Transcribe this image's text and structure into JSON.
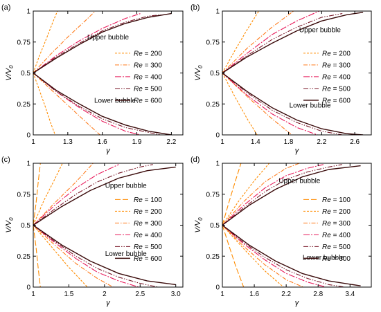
{
  "chart_data": [
    {
      "type": "line",
      "panel_label": "(a)",
      "xlabel": "γ",
      "ylabel": "V/V0",
      "xlim": [
        1,
        2.3
      ],
      "ylim": [
        0,
        1
      ],
      "xticks": [
        1,
        1.3,
        1.6,
        1.9,
        2.2
      ],
      "xtick_labels": [
        "1",
        "1.3",
        "1.6",
        "1.9",
        "2.2"
      ],
      "yticks": [
        0,
        0.25,
        0.5,
        0.75,
        1
      ],
      "ytick_labels": [
        "0",
        "0.25",
        "0.5",
        "0.75",
        "1"
      ],
      "annotations": [
        {
          "text": "Upper bubble",
          "x": 1.65,
          "y": 0.79
        },
        {
          "text": "Lower bubble",
          "x": 1.71,
          "y": 0.28
        }
      ],
      "legend_position": "right-middle",
      "series": [
        {
          "name": "200",
          "style": "short-dash",
          "color": "#ff8c00",
          "upper": {
            "x": [
              1,
              1.05,
              1.12,
              1.17,
              1.21
            ],
            "y": [
              0.5,
              0.63,
              0.79,
              0.91,
              1.0
            ]
          },
          "lower": {
            "x": [
              1,
              1.05,
              1.1,
              1.15,
              1.19
            ],
            "y": [
              0.5,
              0.37,
              0.24,
              0.1,
              0.0
            ]
          }
        },
        {
          "name": "300",
          "style": "dash-dot",
          "color": "#ff7a1a",
          "upper": {
            "x": [
              1,
              1.15,
              1.3,
              1.45,
              1.54
            ],
            "y": [
              0.5,
              0.65,
              0.79,
              0.92,
              1.0
            ]
          },
          "lower": {
            "x": [
              1,
              1.15,
              1.3,
              1.45,
              1.58
            ],
            "y": [
              0.5,
              0.37,
              0.24,
              0.11,
              0.0
            ]
          }
        },
        {
          "name": "400",
          "style": "long-dash-dot",
          "color": "#e8195a",
          "upper": {
            "x": [
              1,
              1.2,
              1.4,
              1.6,
              1.8,
              1.93
            ],
            "y": [
              0.5,
              0.64,
              0.76,
              0.86,
              0.94,
              0.98
            ]
          },
          "lower": {
            "x": [
              1,
              1.2,
              1.4,
              1.6,
              1.8,
              1.93
            ],
            "y": [
              0.5,
              0.35,
              0.22,
              0.11,
              0.03,
              0.0
            ]
          }
        },
        {
          "name": "500",
          "style": "dash-dot-dot",
          "color": "#7a1a2a",
          "upper": {
            "x": [
              1,
              1.2,
              1.4,
              1.6,
              1.8,
              2.0,
              2.11
            ],
            "y": [
              0.5,
              0.63,
              0.74,
              0.84,
              0.91,
              0.96,
              0.97
            ]
          },
          "lower": {
            "x": [
              1,
              1.2,
              1.4,
              1.6,
              1.8,
              2.0,
              2.11
            ],
            "y": [
              0.5,
              0.35,
              0.23,
              0.13,
              0.06,
              0.02,
              0.0
            ]
          }
        },
        {
          "name": "600",
          "style": "solid",
          "color": "#3a0a0a",
          "upper": {
            "x": [
              1,
              1.2,
              1.4,
              1.6,
              1.8,
              2.0,
              2.2
            ],
            "y": [
              0.5,
              0.62,
              0.73,
              0.83,
              0.9,
              0.95,
              0.98
            ]
          },
          "lower": {
            "x": [
              1,
              1.2,
              1.4,
              1.6,
              1.8,
              2.0,
              2.2
            ],
            "y": [
              0.5,
              0.36,
              0.25,
              0.15,
              0.08,
              0.03,
              0.0
            ]
          }
        }
      ]
    },
    {
      "type": "line",
      "panel_label": "(b)",
      "xlabel": "γ",
      "ylabel": "V/V0",
      "xlim": [
        1,
        2.8
      ],
      "ylim": [
        0,
        1
      ],
      "xticks": [
        1,
        1.4,
        1.8,
        2.2,
        2.6
      ],
      "xtick_labels": [
        "1",
        "1.4",
        "1.8",
        "2.2",
        "2.6"
      ],
      "yticks": [
        0,
        0.25,
        0.5,
        0.75,
        1
      ],
      "ytick_labels": [
        "0",
        "0.25",
        "0.5",
        "0.75",
        "1"
      ],
      "annotations": [
        {
          "text": "Upper bubble",
          "x": 2.18,
          "y": 0.85
        },
        {
          "text": "Lower bubble",
          "x": 2.06,
          "y": 0.24
        }
      ],
      "legend_position": "right-middle",
      "series": [
        {
          "name": "200",
          "style": "short-dash",
          "color": "#ff8c00",
          "upper": {
            "x": [
              1,
              1.15,
              1.3,
              1.44
            ],
            "y": [
              0.5,
              0.68,
              0.85,
              1.0
            ]
          },
          "lower": {
            "x": [
              1,
              1.15,
              1.3,
              1.42
            ],
            "y": [
              0.5,
              0.31,
              0.13,
              0.0
            ]
          }
        },
        {
          "name": "300",
          "style": "dash-dot",
          "color": "#ff7a1a",
          "upper": {
            "x": [
              1,
              1.3,
              1.6,
              1.86
            ],
            "y": [
              0.5,
              0.7,
              0.87,
              1.0
            ]
          },
          "lower": {
            "x": [
              1,
              1.3,
              1.6,
              1.84
            ],
            "y": [
              0.5,
              0.31,
              0.13,
              0.0
            ]
          }
        },
        {
          "name": "400",
          "style": "long-dash-dot",
          "color": "#e8195a",
          "upper": {
            "x": [
              1,
              1.3,
              1.6,
              1.9,
              2.17
            ],
            "y": [
              0.5,
              0.66,
              0.81,
              0.92,
              1.0
            ]
          },
          "lower": {
            "x": [
              1,
              1.3,
              1.6,
              1.9,
              2.15
            ],
            "y": [
              0.5,
              0.32,
              0.17,
              0.06,
              0.0
            ]
          }
        },
        {
          "name": "500",
          "style": "dash-dot-dot",
          "color": "#7a1a2a",
          "upper": {
            "x": [
              1,
              1.3,
              1.6,
              1.9,
              2.2,
              2.45
            ],
            "y": [
              0.5,
              0.64,
              0.77,
              0.87,
              0.95,
              0.98
            ]
          },
          "lower": {
            "x": [
              1,
              1.3,
              1.6,
              1.9,
              2.2,
              2.45
            ],
            "y": [
              0.5,
              0.34,
              0.2,
              0.1,
              0.03,
              0.0
            ]
          }
        },
        {
          "name": "600",
          "style": "solid",
          "color": "#3a0a0a",
          "upper": {
            "x": [
              1,
              1.3,
              1.6,
              1.9,
              2.2,
              2.5,
              2.7
            ],
            "y": [
              0.5,
              0.63,
              0.74,
              0.84,
              0.92,
              0.97,
              0.99
            ]
          },
          "lower": {
            "x": [
              1,
              1.3,
              1.6,
              1.9,
              2.2,
              2.5,
              2.7
            ],
            "y": [
              0.5,
              0.35,
              0.22,
              0.12,
              0.05,
              0.01,
              0.0
            ]
          }
        }
      ]
    },
    {
      "type": "line",
      "panel_label": "(c)",
      "xlabel": "γ",
      "ylabel": "V/V0",
      "xlim": [
        1,
        3.1
      ],
      "ylim": [
        0,
        1
      ],
      "xticks": [
        1,
        1.5,
        2,
        2.5,
        3
      ],
      "xtick_labels": [
        "1",
        "1.5",
        "2",
        "2.5",
        "3.0"
      ],
      "yticks": [
        0,
        0.25,
        0.5,
        0.75,
        1
      ],
      "ytick_labels": [
        "0",
        "0.25",
        "0.5",
        "0.75",
        "1"
      ],
      "annotations": [
        {
          "text": "Upper bubble",
          "x": 2.3,
          "y": 0.82
        },
        {
          "text": "Lower bubble",
          "x": 2.3,
          "y": 0.27
        }
      ],
      "legend_position": "right-middle",
      "series": [
        {
          "name": "100",
          "style": "long-dash",
          "color": "#ff8c00",
          "upper": {
            "x": [
              1,
              1.04,
              1.07,
              1.1
            ],
            "y": [
              0.5,
              0.68,
              0.85,
              1.0
            ]
          },
          "lower": {
            "x": [
              1,
              1.04,
              1.07,
              1.1
            ],
            "y": [
              0.5,
              0.32,
              0.15,
              0.0
            ]
          }
        },
        {
          "name": "200",
          "style": "short-dash",
          "color": "#ff8c00",
          "upper": {
            "x": [
              1,
              1.15,
              1.3,
              1.41
            ],
            "y": [
              0.5,
              0.7,
              0.87,
              1.0
            ]
          },
          "lower": {
            "x": [
              1,
              1.25,
              1.5,
              1.76
            ],
            "y": [
              0.5,
              0.33,
              0.16,
              0.0
            ]
          }
        },
        {
          "name": "300",
          "style": "dash-dot",
          "color": "#ff7a1a",
          "upper": {
            "x": [
              1,
              1.3,
              1.6,
              1.84
            ],
            "y": [
              0.5,
              0.68,
              0.85,
              1.0
            ]
          },
          "lower": {
            "x": [
              1,
              1.3,
              1.6,
              1.9,
              2.12
            ],
            "y": [
              0.5,
              0.34,
              0.19,
              0.07,
              0.0
            ]
          }
        },
        {
          "name": "400",
          "style": "long-dash-dot",
          "color": "#e8195a",
          "upper": {
            "x": [
              1,
              1.3,
              1.6,
              1.9,
              2.2
            ],
            "y": [
              0.5,
              0.66,
              0.8,
              0.91,
              0.99
            ]
          },
          "lower": {
            "x": [
              1,
              1.3,
              1.6,
              1.9,
              2.2,
              2.48
            ],
            "y": [
              0.5,
              0.36,
              0.23,
              0.12,
              0.05,
              0.0
            ]
          }
        },
        {
          "name": "500",
          "style": "dash-dot-dot",
          "color": "#7a1a2a",
          "upper": {
            "x": [
              1,
              1.3,
              1.6,
              1.9,
              2.2,
              2.5,
              2.68
            ],
            "y": [
              0.5,
              0.63,
              0.75,
              0.85,
              0.92,
              0.97,
              0.99
            ]
          },
          "lower": {
            "x": [
              1,
              1.3,
              1.6,
              1.9,
              2.2,
              2.5,
              2.75
            ],
            "y": [
              0.5,
              0.37,
              0.25,
              0.15,
              0.08,
              0.03,
              0.0
            ]
          }
        },
        {
          "name": "600",
          "style": "solid",
          "color": "#3a0a0a",
          "upper": {
            "x": [
              1,
              1.4,
              1.8,
              2.2,
              2.6,
              3.0
            ],
            "y": [
              0.5,
              0.65,
              0.78,
              0.88,
              0.94,
              0.97
            ]
          },
          "lower": {
            "x": [
              1,
              1.4,
              1.8,
              2.2,
              2.6,
              3.0
            ],
            "y": [
              0.5,
              0.34,
              0.21,
              0.11,
              0.05,
              0.02
            ]
          }
        }
      ]
    },
    {
      "type": "line",
      "panel_label": "(d)",
      "xlabel": "γ",
      "ylabel": "V/V0",
      "xlim": [
        1,
        3.8
      ],
      "ylim": [
        0,
        1
      ],
      "xticks": [
        1,
        1.6,
        2.2,
        2.8,
        3.4
      ],
      "xtick_labels": [
        "1",
        "1.6",
        "2.2",
        "2.8",
        "3.4"
      ],
      "yticks": [
        0,
        0.25,
        0.5,
        0.75,
        1
      ],
      "ytick_labels": [
        "0",
        "0.25",
        "0.5",
        "0.75",
        "1"
      ],
      "annotations": [
        {
          "text": "Upper bubble",
          "x": 2.45,
          "y": 0.86
        },
        {
          "text": "Lower bubble",
          "x": 2.9,
          "y": 0.24
        }
      ],
      "legend_position": "right-middle",
      "series": [
        {
          "name": "100",
          "style": "long-dash",
          "color": "#ff8c00",
          "upper": {
            "x": [
              1,
              1.12,
              1.24,
              1.35
            ],
            "y": [
              0.5,
              0.68,
              0.85,
              1.0
            ]
          },
          "lower": {
            "x": [
              1,
              1.12,
              1.25,
              1.4
            ],
            "y": [
              0.5,
              0.34,
              0.17,
              0.0
            ]
          }
        },
        {
          "name": "200",
          "style": "short-dash",
          "color": "#ff8c00",
          "upper": {
            "x": [
              1,
              1.3,
              1.6,
              1.88
            ],
            "y": [
              0.5,
              0.69,
              0.86,
              1.0
            ]
          },
          "lower": {
            "x": [
              1,
              1.4,
              1.8,
              2.15
            ],
            "y": [
              0.5,
              0.31,
              0.13,
              0.0
            ]
          }
        },
        {
          "name": "300",
          "style": "dash-dot",
          "color": "#ff7a1a",
          "upper": {
            "x": [
              1,
              1.4,
              1.8,
              2.2,
              2.45
            ],
            "y": [
              0.5,
              0.69,
              0.85,
              0.96,
              1.0
            ]
          },
          "lower": {
            "x": [
              1,
              1.4,
              1.8,
              2.2,
              2.52
            ],
            "y": [
              0.5,
              0.33,
              0.18,
              0.06,
              0.0
            ]
          }
        },
        {
          "name": "400",
          "style": "long-dash-dot",
          "color": "#e8195a",
          "upper": {
            "x": [
              1,
              1.4,
              1.8,
              2.2,
              2.6,
              2.9
            ],
            "y": [
              0.5,
              0.66,
              0.8,
              0.9,
              0.96,
              0.99
            ]
          },
          "lower": {
            "x": [
              1,
              1.4,
              1.8,
              2.2,
              2.6,
              2.95
            ],
            "y": [
              0.5,
              0.35,
              0.22,
              0.11,
              0.04,
              0.0
            ]
          }
        },
        {
          "name": "500",
          "style": "dash-dot-dot",
          "color": "#7a1a2a",
          "upper": {
            "x": [
              1,
              1.4,
              1.8,
              2.2,
              2.6,
              3.0,
              3.25
            ],
            "y": [
              0.5,
              0.64,
              0.77,
              0.87,
              0.93,
              0.97,
              0.99
            ]
          },
          "lower": {
            "x": [
              1,
              1.4,
              1.8,
              2.2,
              2.6,
              3.0,
              3.3
            ],
            "y": [
              0.5,
              0.36,
              0.24,
              0.14,
              0.07,
              0.02,
              0.0
            ]
          }
        },
        {
          "name": "600",
          "style": "solid",
          "color": "#3a0a0a",
          "upper": {
            "x": [
              1,
              1.5,
              2.0,
              2.5,
              3.0,
              3.6
            ],
            "y": [
              0.5,
              0.66,
              0.79,
              0.89,
              0.95,
              0.98
            ]
          },
          "lower": {
            "x": [
              1,
              1.5,
              2.0,
              2.5,
              3.0,
              3.6
            ],
            "y": [
              0.5,
              0.34,
              0.21,
              0.11,
              0.05,
              0.01
            ]
          }
        }
      ]
    }
  ]
}
